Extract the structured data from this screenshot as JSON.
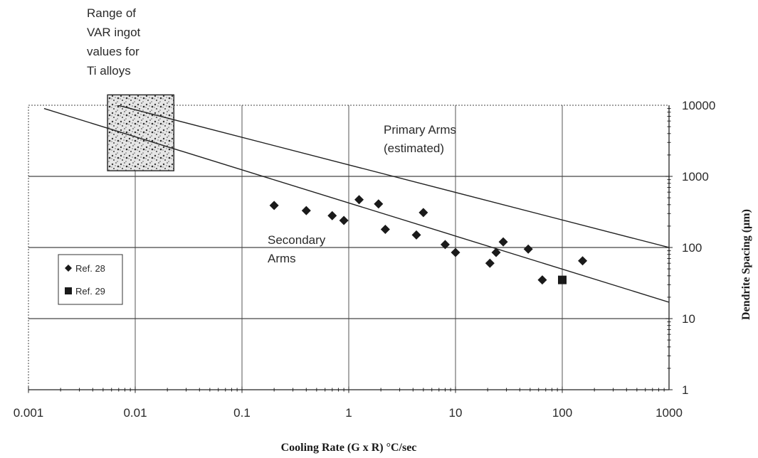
{
  "chart_data": {
    "type": "scatter",
    "xlabel": "Cooling Rate (G x R) °C/sec",
    "ylabel": "Dendrite Spacing (µm)",
    "x_scale": "log",
    "y_scale": "log",
    "xlim": [
      0.001,
      1000
    ],
    "ylim": [
      1,
      10000
    ],
    "x_ticks": [
      "0.001",
      "0.01",
      "0.1",
      "1",
      "10",
      "100",
      "1000"
    ],
    "y_ticks": [
      "10000",
      "1000",
      "100",
      "10",
      "1"
    ],
    "grid": true,
    "legend_position": "left",
    "legend": [
      {
        "label": "Ref. 28",
        "marker": "diamond"
      },
      {
        "label": "Ref. 29",
        "marker": "square"
      }
    ],
    "series": [
      {
        "name": "Ref. 28",
        "marker": "diamond",
        "points": [
          {
            "x": 0.2,
            "y": 390
          },
          {
            "x": 0.4,
            "y": 330
          },
          {
            "x": 0.7,
            "y": 280
          },
          {
            "x": 0.9,
            "y": 240
          },
          {
            "x": 1.25,
            "y": 470
          },
          {
            "x": 1.9,
            "y": 410
          },
          {
            "x": 2.2,
            "y": 180
          },
          {
            "x": 4.3,
            "y": 150
          },
          {
            "x": 5.0,
            "y": 310
          },
          {
            "x": 8.0,
            "y": 110
          },
          {
            "x": 10.0,
            "y": 85
          },
          {
            "x": 21.0,
            "y": 60
          },
          {
            "x": 24.0,
            "y": 85
          },
          {
            "x": 28.0,
            "y": 120
          },
          {
            "x": 48.0,
            "y": 95
          },
          {
            "x": 65.0,
            "y": 35
          },
          {
            "x": 155.0,
            "y": 65
          }
        ]
      },
      {
        "name": "Ref. 29",
        "marker": "square",
        "points": [
          {
            "x": 100.0,
            "y": 35
          }
        ]
      }
    ],
    "trend_lines": [
      {
        "name": "Primary Arms",
        "from": {
          "x": 0.0014,
          "y": 18500
        },
        "to": {
          "x": 1000,
          "y": 100
        }
      },
      {
        "name": "Secondary Arms",
        "from": {
          "x": 0.0014,
          "y": 9000
        },
        "to": {
          "x": 1000,
          "y": 17
        }
      }
    ],
    "annotations": [
      {
        "id": "range",
        "lines": [
          "Range of",
          "VAR ingot",
          "values for",
          "Ti alloys"
        ]
      },
      {
        "id": "primary",
        "lines": [
          "Primary Arms",
          "(estimated)"
        ]
      },
      {
        "id": "secondary",
        "lines": [
          "Secondary",
          "Arms"
        ]
      }
    ],
    "var_range_box": {
      "x": [
        0.0055,
        0.023
      ],
      "y": [
        1200,
        14000
      ]
    }
  }
}
